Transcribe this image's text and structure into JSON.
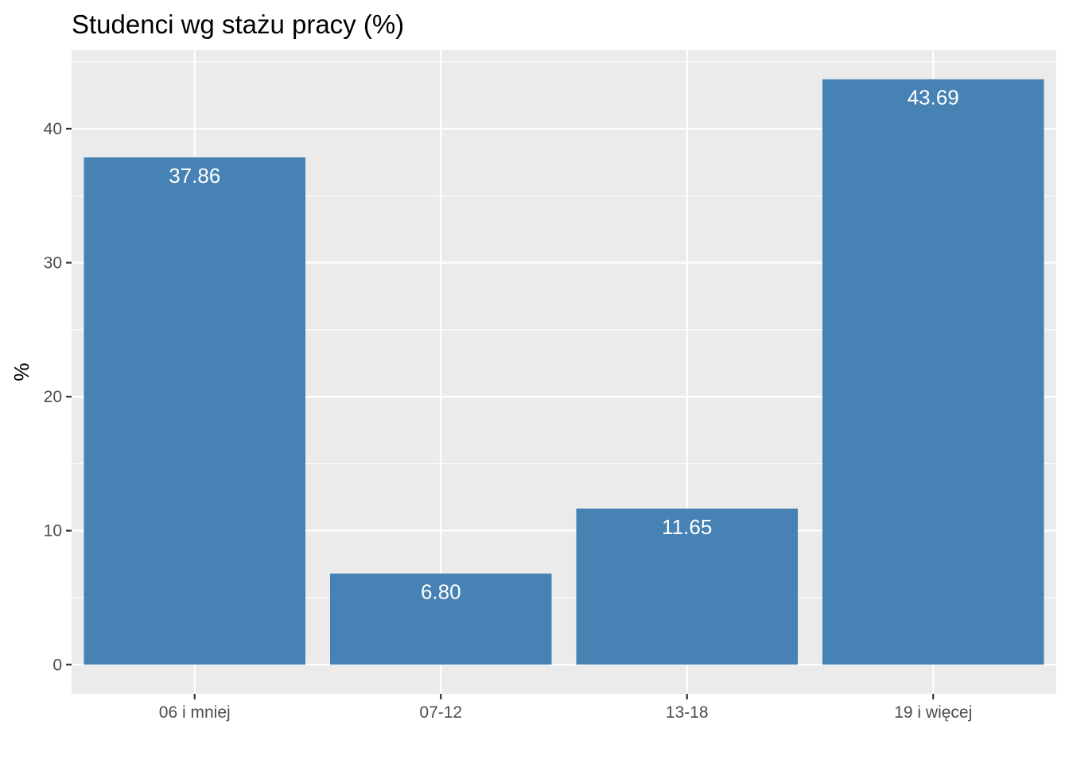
{
  "chart_data": {
    "type": "bar",
    "title": "Studenci wg stażu pracy (%)",
    "xlabel": "",
    "ylabel": "%",
    "categories": [
      "06 i mniej",
      "07-12",
      "13-18",
      "19 i więcej"
    ],
    "values": [
      37.86,
      6.8,
      11.65,
      43.69
    ],
    "data_labels": [
      "37.86",
      "6.80",
      "11.65",
      "43.69"
    ],
    "y_ticks": [
      0,
      10,
      20,
      30,
      40
    ],
    "y_tick_labels": [
      "0",
      "10",
      "20",
      "30",
      "40"
    ],
    "ylim": [
      -2.18,
      45.87
    ],
    "grid": true,
    "legend": "none",
    "colors": {
      "bar": "#4682b4",
      "panel_background": "#ebebeb",
      "grid": "#ffffff",
      "bar_label": "#ffffff",
      "tick_text": "#4d4d4d"
    }
  }
}
